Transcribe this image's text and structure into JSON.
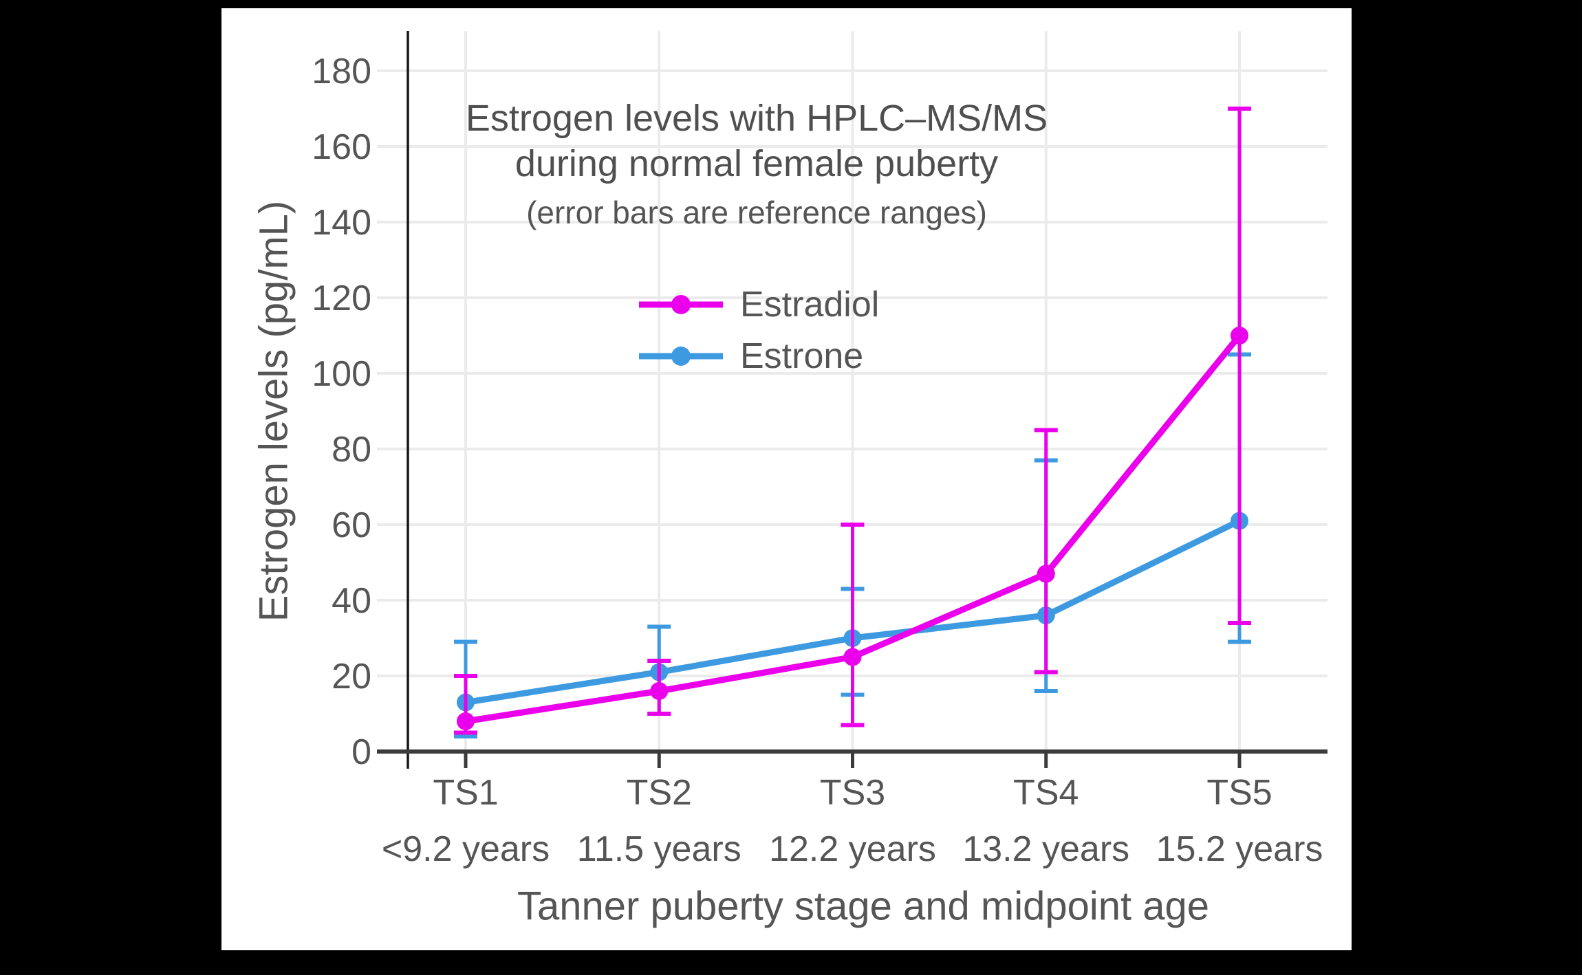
{
  "chart_data": {
    "type": "line",
    "title": "Estrogen levels with HPLC–MS/MS during normal female puberty",
    "title_lines": [
      "Estrogen levels with HPLC–MS/MS",
      "during normal female puberty"
    ],
    "subtitle": "(error bars are reference ranges)",
    "xlabel": "Tanner puberty stage and midpoint age",
    "ylabel": "Estrogen levels (pg/mL)",
    "categories": [
      "TS1",
      "TS2",
      "TS3",
      "TS4",
      "TS5"
    ],
    "category_sublabels": [
      "<9.2 years",
      "11.5 years",
      "12.2 years",
      "13.2 years",
      "15.2 years"
    ],
    "yticks": [
      0,
      20,
      40,
      60,
      80,
      100,
      120,
      140,
      160,
      180
    ],
    "ylim": [
      0,
      190
    ],
    "grid": true,
    "legend_position": "inside-upper-left",
    "error_bar_meaning": "reference ranges",
    "series": [
      {
        "name": "Estradiol",
        "color": "#EA00EA",
        "values": [
          8,
          16,
          25,
          47,
          110
        ],
        "range_low": [
          5,
          10,
          7,
          21,
          34
        ],
        "range_high": [
          20,
          24,
          60,
          85,
          170
        ]
      },
      {
        "name": "Estrone",
        "color": "#3E9AE0",
        "values": [
          13,
          21,
          30,
          36,
          61
        ],
        "range_low": [
          4,
          10,
          15,
          16,
          29
        ],
        "range_high": [
          29,
          33,
          43,
          77,
          105
        ]
      }
    ]
  },
  "colors": {
    "figure_background": "#FFFFFF",
    "outer_background": "#000000",
    "gridline": "#EBEBEB",
    "y_axis_line": "#161616",
    "x_axis_line": "#3B3B3B",
    "text": "#555555"
  }
}
